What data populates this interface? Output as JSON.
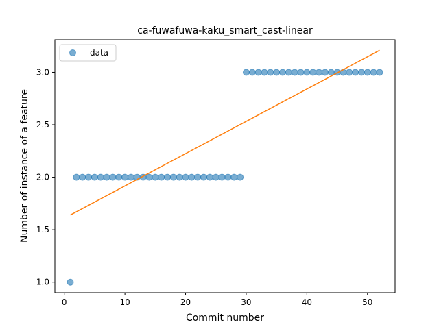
{
  "chart_data": {
    "type": "scatter",
    "title": "ca-fuwafuwa-kaku_smart_cast-linear",
    "xlabel": "Commit number",
    "ylabel": "Number of instance of a feature",
    "xlim": [
      -1.55,
      54.55
    ],
    "ylim": [
      0.9,
      3.31
    ],
    "xticks": [
      0,
      10,
      20,
      30,
      40,
      50
    ],
    "yticks": [
      1.0,
      1.5,
      2.0,
      2.5,
      3.0
    ],
    "xtick_labels": [
      "0",
      "10",
      "20",
      "30",
      "40",
      "50"
    ],
    "ytick_labels": [
      "1.0",
      "1.5",
      "2.0",
      "2.5",
      "3.0"
    ],
    "legend": {
      "placement": "top-left",
      "entries": [
        "data"
      ]
    },
    "grid": false,
    "colors": {
      "data": "#1f77b4",
      "fit": "#ff7f0e"
    },
    "series": [
      {
        "name": "data",
        "kind": "scatter",
        "x": [
          1,
          2,
          3,
          4,
          5,
          6,
          7,
          8,
          9,
          10,
          11,
          12,
          13,
          14,
          15,
          16,
          17,
          18,
          19,
          20,
          21,
          22,
          23,
          24,
          25,
          26,
          27,
          28,
          29,
          30,
          31,
          32,
          33,
          34,
          35,
          36,
          37,
          38,
          39,
          40,
          41,
          42,
          43,
          44,
          45,
          46,
          47,
          48,
          49,
          50,
          51,
          52
        ],
        "y": [
          1,
          2,
          2,
          2,
          2,
          2,
          2,
          2,
          2,
          2,
          2,
          2,
          2,
          2,
          2,
          2,
          2,
          2,
          2,
          2,
          2,
          2,
          2,
          2,
          2,
          2,
          2,
          2,
          2,
          3,
          3,
          3,
          3,
          3,
          3,
          3,
          3,
          3,
          3,
          3,
          3,
          3,
          3,
          3,
          3,
          3,
          3,
          3,
          3,
          3,
          3,
          3
        ]
      },
      {
        "kind": "line",
        "x": [
          1,
          52
        ],
        "y": [
          1.64,
          3.21
        ]
      }
    ]
  }
}
